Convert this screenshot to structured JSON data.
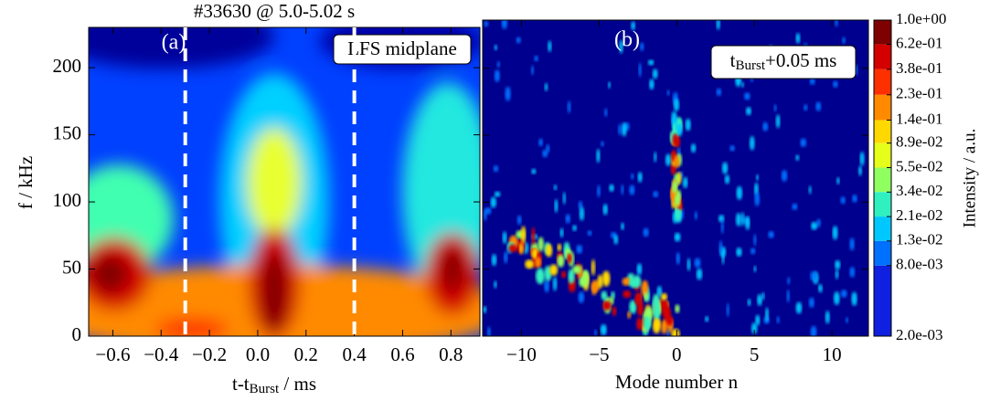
{
  "chart_data": [
    {
      "type": "contour",
      "title": "#33630 @ 5.0-5.02 s",
      "panel_label": "(a)",
      "annotation": "LFS midplane",
      "xlabel": [
        "t-t",
        "Burst",
        " / ms"
      ],
      "ylabel": "f / kHz",
      "xlim": [
        -0.7,
        0.92
      ],
      "ylim": [
        0,
        230
      ],
      "xticks": [
        {
          "value": -0.6,
          "label": "−0.6"
        },
        {
          "value": -0.4,
          "label": "−0.4"
        },
        {
          "value": -0.2,
          "label": "−0.2"
        },
        {
          "value": 0,
          "label": "0.0"
        },
        0.2,
        0.4,
        0.6,
        0.8
      ],
      "yticks": [
        0,
        50,
        100,
        150,
        200
      ],
      "vlines": [
        -0.3,
        0.4
      ]
    },
    {
      "type": "contour",
      "panel_label": "(b)",
      "annotation": [
        "t",
        "Burst",
        "+0.05 ms"
      ],
      "xlabel": "Mode number n",
      "xlim": [
        -12.5,
        12.35
      ],
      "ylim": [
        0,
        236
      ],
      "xticks": [
        {
          "value": -10,
          "label": "−10"
        },
        {
          "value": -5,
          "label": "−5"
        },
        0,
        5,
        10
      ],
      "yticks": [
        0,
        50,
        100,
        150,
        200
      ]
    },
    {
      "type": "colorbar",
      "label": "Intensity / a.u.",
      "log": true,
      "ylim": [
        0.002,
        1
      ],
      "yticks": [
        {
          "value": 1,
          "label": "1.0e+00"
        },
        {
          "value": 0.62,
          "label": "6.2e-01"
        },
        {
          "value": 0.38,
          "label": "3.8e-01"
        },
        {
          "value": 0.23,
          "label": "2.3e-01"
        },
        {
          "value": 0.14,
          "label": "1.4e-01"
        },
        {
          "value": 0.089,
          "label": "8.9e-02"
        },
        {
          "value": 0.055,
          "label": "5.5e-02"
        },
        {
          "value": 0.034,
          "label": "3.4e-02"
        },
        {
          "value": 0.021,
          "label": "2.1e-02"
        },
        {
          "value": 0.013,
          "label": "1.3e-02"
        },
        {
          "value": 0.008,
          "label": "8.0e-03"
        },
        {
          "value": 0.002,
          "label": "2.0e-03"
        }
      ],
      "colors": [
        "#7f0000",
        "#d40000",
        "#ff3000",
        "#ff8a00",
        "#ffd800",
        "#e6ff1a",
        "#90ff60",
        "#30f0c0",
        "#00c8ff",
        "#0070ff",
        "#1020e0"
      ]
    }
  ]
}
